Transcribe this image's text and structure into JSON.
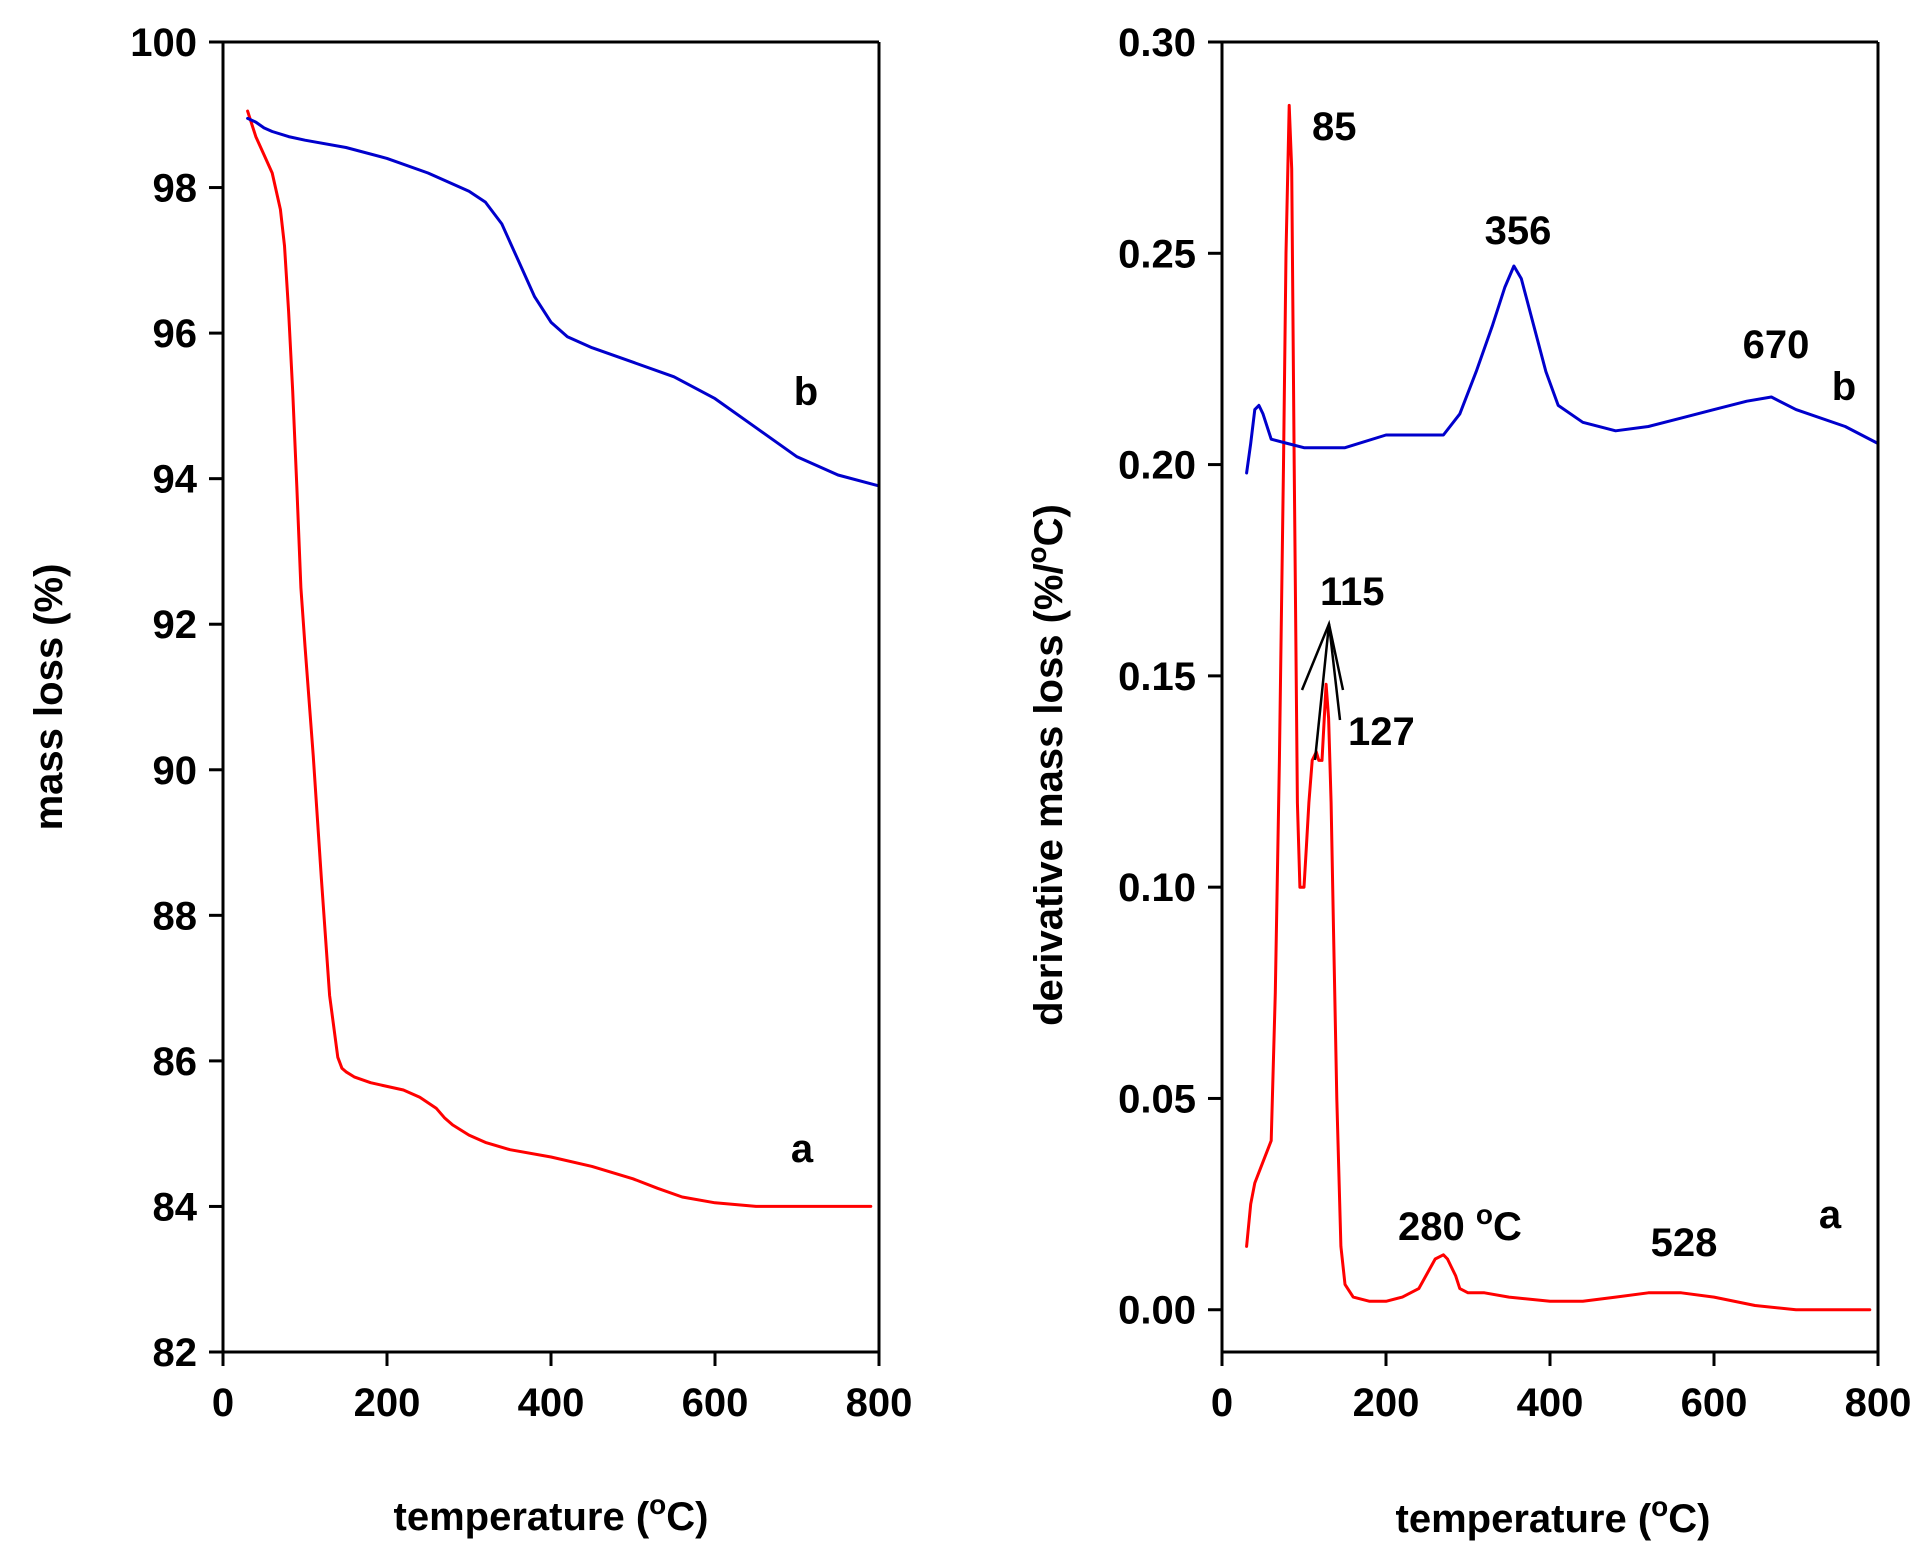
{
  "chart_data": [
    {
      "type": "line",
      "xlabel": "temperature (",
      "xlabel_unit": "C)",
      "xlabel_super": "o",
      "ylabel": "mass loss (%)",
      "xlim": [
        0,
        800
      ],
      "ylim": [
        82,
        100
      ],
      "xticks": [
        0,
        200,
        400,
        600,
        800
      ],
      "yticks": [
        82,
        84,
        86,
        88,
        90,
        92,
        94,
        96,
        98,
        100
      ],
      "xtick_labels": [
        "0",
        "200",
        "400",
        "600",
        "800"
      ],
      "ytick_labels": [
        "82",
        "84",
        "86",
        "88",
        "90",
        "92",
        "94",
        "96",
        "98",
        "100"
      ],
      "series": [
        {
          "name": "a",
          "color": "#ff0000",
          "x": [
            30,
            40,
            50,
            60,
            70,
            75,
            80,
            85,
            90,
            95,
            100,
            110,
            120,
            130,
            140,
            145,
            150,
            160,
            180,
            200,
            220,
            240,
            260,
            270,
            280,
            290,
            300,
            320,
            350,
            400,
            450,
            500,
            530,
            560,
            600,
            650,
            690,
            730,
            760,
            790
          ],
          "y": [
            99.05,
            98.7,
            98.45,
            98.2,
            97.7,
            97.2,
            96.3,
            95.2,
            93.9,
            92.5,
            91.7,
            90.2,
            88.5,
            86.9,
            86.05,
            85.9,
            85.85,
            85.78,
            85.7,
            85.65,
            85.6,
            85.5,
            85.35,
            85.22,
            85.12,
            85.05,
            84.98,
            84.88,
            84.78,
            84.68,
            84.55,
            84.38,
            84.25,
            84.13,
            84.05,
            84.0,
            84.0,
            84.0,
            84.0,
            84.0
          ]
        },
        {
          "name": "b",
          "color": "#0000cc",
          "x": [
            30,
            40,
            50,
            60,
            80,
            100,
            150,
            200,
            250,
            300,
            320,
            340,
            360,
            380,
            400,
            420,
            450,
            500,
            550,
            600,
            650,
            700,
            750,
            800
          ],
          "y": [
            98.95,
            98.9,
            98.82,
            98.77,
            98.7,
            98.65,
            98.55,
            98.4,
            98.2,
            97.95,
            97.8,
            97.5,
            97.0,
            96.5,
            96.15,
            95.95,
            95.8,
            95.6,
            95.4,
            95.1,
            94.7,
            94.3,
            94.05,
            93.9
          ]
        }
      ],
      "annotations": [
        "b",
        "a"
      ]
    },
    {
      "type": "line",
      "xlabel": "temperature (",
      "xlabel_unit": "C)",
      "xlabel_super": "o",
      "ylabel": "derivative mass loss (%/",
      "ylabel_unit": "C)",
      "ylabel_super": "o",
      "xlim": [
        0,
        800
      ],
      "ylim": [
        -0.01,
        0.3
      ],
      "xticks": [
        0,
        200,
        400,
        600,
        800
      ],
      "yticks": [
        0.0,
        0.05,
        0.1,
        0.15,
        0.2,
        0.25,
        0.3
      ],
      "xtick_labels": [
        "0",
        "200",
        "400",
        "600",
        "800"
      ],
      "ytick_labels": [
        "0.00",
        "0.05",
        "0.10",
        "0.15",
        "0.20",
        "0.25",
        "0.30"
      ],
      "series": [
        {
          "name": "a",
          "color": "#ff0000",
          "x": [
            30,
            35,
            40,
            50,
            60,
            65,
            70,
            75,
            78,
            82,
            85,
            88,
            92,
            95,
            100,
            103,
            106,
            110,
            115,
            118,
            122,
            127,
            130,
            133,
            136,
            140,
            145,
            150,
            160,
            180,
            200,
            220,
            240,
            260,
            270,
            275,
            280,
            285,
            290,
            300,
            320,
            350,
            400,
            440,
            480,
            520,
            540,
            560,
            600,
            650,
            700,
            750,
            790
          ],
          "y": [
            0.015,
            0.025,
            0.03,
            0.035,
            0.04,
            0.075,
            0.13,
            0.2,
            0.25,
            0.285,
            0.27,
            0.2,
            0.12,
            0.1,
            0.1,
            0.11,
            0.12,
            0.13,
            0.132,
            0.13,
            0.13,
            0.148,
            0.14,
            0.12,
            0.09,
            0.05,
            0.015,
            0.006,
            0.003,
            0.002,
            0.002,
            0.003,
            0.005,
            0.012,
            0.013,
            0.012,
            0.01,
            0.008,
            0.005,
            0.004,
            0.004,
            0.003,
            0.002,
            0.002,
            0.003,
            0.004,
            0.004,
            0.004,
            0.003,
            0.001,
            0.0,
            0.0,
            0.0
          ]
        },
        {
          "name": "b",
          "color": "#0000cc",
          "x": [
            30,
            35,
            40,
            45,
            50,
            60,
            80,
            100,
            150,
            200,
            250,
            270,
            290,
            310,
            330,
            345,
            356,
            365,
            380,
            395,
            410,
            440,
            480,
            520,
            560,
            600,
            640,
            670,
            700,
            760,
            800
          ],
          "y": [
            0.198,
            0.205,
            0.213,
            0.214,
            0.212,
            0.206,
            0.205,
            0.204,
            0.204,
            0.207,
            0.207,
            0.207,
            0.212,
            0.222,
            0.233,
            0.242,
            0.247,
            0.244,
            0.233,
            0.222,
            0.214,
            0.21,
            0.208,
            0.209,
            0.211,
            0.213,
            0.215,
            0.216,
            0.213,
            0.209,
            0.205
          ]
        }
      ],
      "annotations": [
        "85",
        "356",
        "670",
        "b",
        "115",
        "127",
        "280",
        "C",
        "528",
        "a"
      ]
    }
  ],
  "annotation_degree_superscript": "o"
}
